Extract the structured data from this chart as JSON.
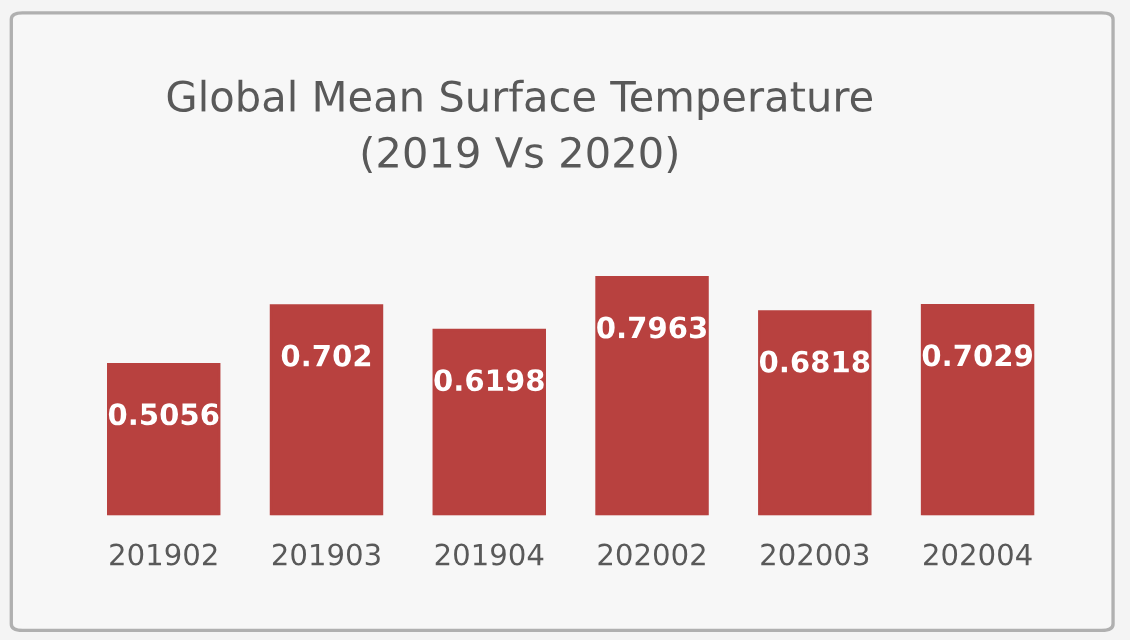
{
  "chart_data": {
    "type": "bar",
    "title": "Global Mean Surface Temperature\n(2019 Vs 2020)",
    "categories": [
      "201902",
      "201903",
      "201904",
      "202002",
      "202003",
      "202004"
    ],
    "values": [
      0.5056,
      0.702,
      0.6198,
      0.7963,
      0.6818,
      0.7029
    ],
    "color": "#b8413f",
    "data_labels": true,
    "grid": false,
    "legend": false
  }
}
